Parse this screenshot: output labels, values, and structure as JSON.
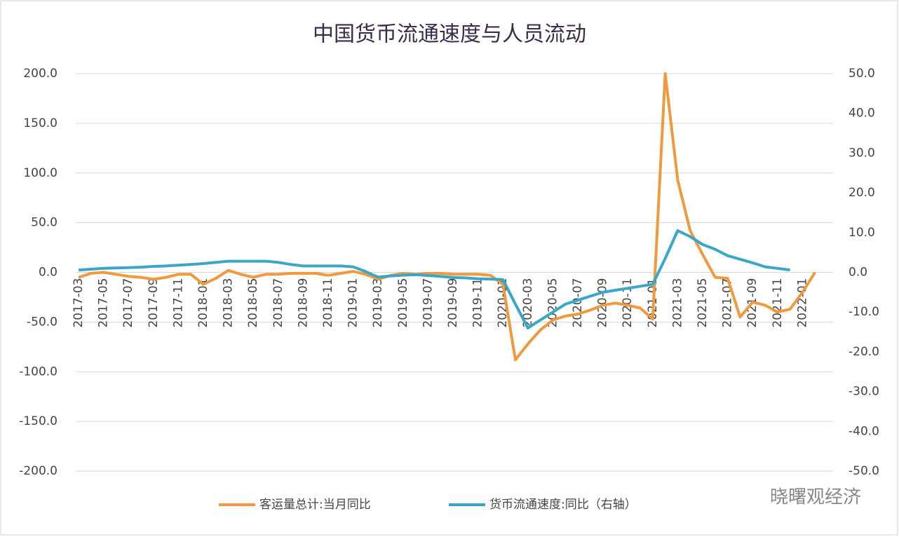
{
  "chart_data": {
    "type": "line",
    "title": "中国货币流通速度与人员流动",
    "watermark": "晓曙观经济",
    "categories": [
      "2017-03",
      null,
      "2017-05",
      null,
      "2017-07",
      null,
      "2017-09",
      null,
      "2017-11",
      null,
      "2018-01",
      null,
      "2018-03",
      null,
      "2018-05",
      null,
      "2018-07",
      null,
      "2018-09",
      null,
      "2018-11",
      null,
      "2019-01",
      null,
      "2019-03",
      null,
      "2019-05",
      null,
      "2019-07",
      null,
      "2019-09",
      null,
      "2019-11",
      null,
      "2020-01",
      null,
      "2020-03",
      null,
      "2020-05",
      null,
      "2020-07",
      null,
      "2020-09",
      null,
      "2020-11",
      null,
      "2021-01",
      null,
      "2021-03",
      null,
      "2021-05",
      null,
      "2021-07",
      null,
      "2021-09",
      null,
      "2021-11",
      null,
      "2022-01",
      null
    ],
    "series": [
      {
        "name": "客运量总计:当月同比",
        "color": "#ef9a3e",
        "values": [
          -5,
          -1,
          0,
          -2,
          -4,
          -5,
          -7,
          -5,
          -2,
          -2,
          -12,
          -6,
          2,
          -2,
          -5,
          -2,
          -2,
          -1,
          -1,
          -1,
          -3,
          -1,
          1,
          -2,
          -7,
          -3,
          -1,
          -2,
          -1,
          -1,
          -2,
          -2,
          -2,
          -3,
          -12,
          -88,
          -72,
          -58,
          -48,
          -44,
          -42,
          -38,
          -33,
          -31,
          -33,
          -36,
          -47,
          200,
          93,
          42,
          18,
          -5,
          -6,
          -45,
          -30,
          -33,
          -40,
          -37,
          -20,
          0
        ]
      },
      {
        "name": "货币流通速度:同比（右轴）",
        "color": "#3aa6c8",
        "axis": "y2",
        "values": [
          0.6,
          0.8,
          1.0,
          1.1,
          1.2,
          1.3,
          1.5,
          1.6,
          1.8,
          2.0,
          2.2,
          2.5,
          2.8,
          2.8,
          2.8,
          2.8,
          2.5,
          2.0,
          1.6,
          1.6,
          1.6,
          1.6,
          1.4,
          0.2,
          -1.2,
          -0.9,
          -0.7,
          -0.6,
          -0.8,
          -1.0,
          -1.3,
          -1.4,
          -1.6,
          -1.7,
          -1.8,
          -8,
          -14,
          -12,
          -10,
          -8,
          -7,
          -6,
          -5,
          -4.5,
          -4,
          -3.5,
          -3,
          3.5,
          10.5,
          9,
          7,
          5.8,
          4.2,
          3.3,
          2.4,
          1.4,
          1.0,
          0.6,
          null,
          null
        ]
      }
    ],
    "ylim": [
      -200,
      200
    ],
    "yticks": [
      {
        "value": -200,
        "label": "-200.0"
      },
      {
        "value": -150,
        "label": "-150.0"
      },
      {
        "value": -100,
        "label": "-100.0"
      },
      {
        "value": -50,
        "label": "-50.0"
      },
      {
        "value": 0,
        "label": "0.0"
      },
      {
        "value": 50,
        "label": "50.0"
      },
      {
        "value": 100,
        "label": "100.0"
      },
      {
        "value": 150,
        "label": "150.0"
      },
      {
        "value": 200,
        "label": "200.0"
      }
    ],
    "y2lim": [
      -50,
      50
    ],
    "y2ticks": [
      {
        "value": -50,
        "label": "-50.0"
      },
      {
        "value": -40,
        "label": "-40.0"
      },
      {
        "value": -30,
        "label": "-30.0"
      },
      {
        "value": -20,
        "label": "-20.0"
      },
      {
        "value": -10,
        "label": "-10.0"
      },
      {
        "value": 0,
        "label": "0.0"
      },
      {
        "value": 10,
        "label": "10.0"
      },
      {
        "value": 20,
        "label": "20.0"
      },
      {
        "value": 30,
        "label": "30.0"
      },
      {
        "value": 40,
        "label": "40.0"
      },
      {
        "value": 50,
        "label": "50.0"
      }
    ],
    "grid": true
  }
}
